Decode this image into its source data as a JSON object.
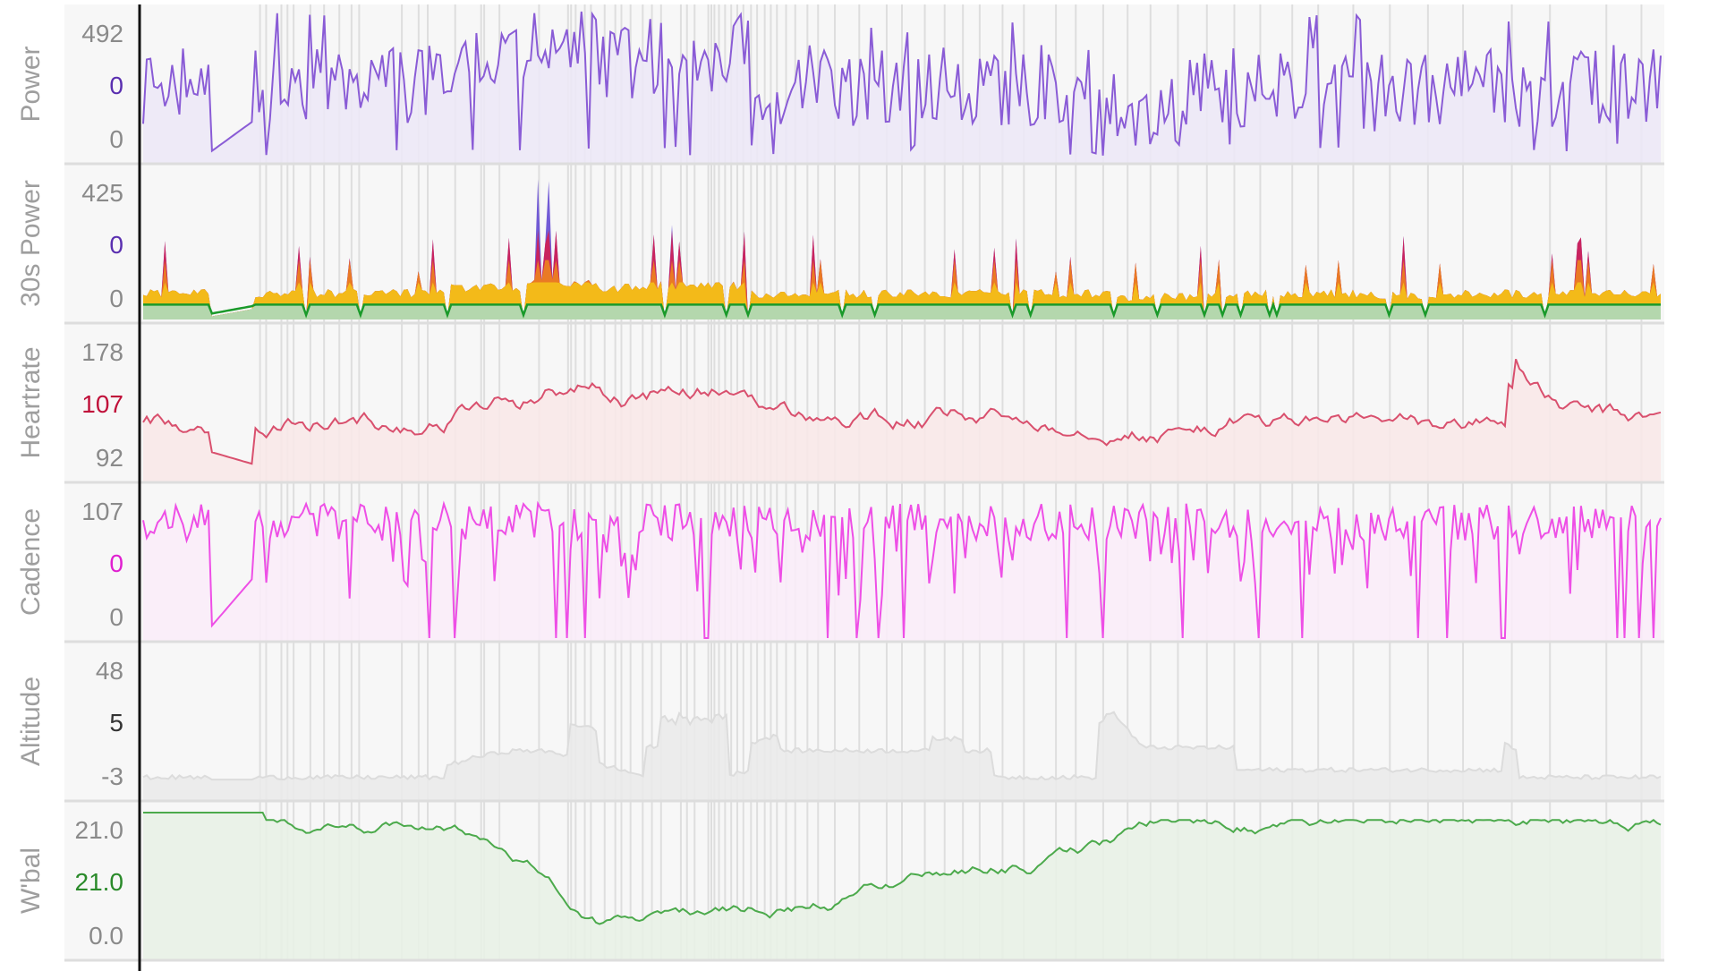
{
  "chart_data": [
    {
      "type": "line",
      "panel": "power",
      "ylabel": "Power",
      "ticks": {
        "top": "492",
        "middle": "0",
        "bottom": "0"
      },
      "colors": {
        "line": "#8a5cd6",
        "fill": "#ece8f6",
        "middle_tick": "#5a2fb0"
      },
      "ylim": [
        0,
        492
      ],
      "profile": "power",
      "points": 420
    },
    {
      "type": "area",
      "panel": "power30",
      "ylabel": "30s Power",
      "ticks": {
        "top": "425",
        "middle": "0",
        "bottom": "0"
      },
      "colors": {
        "zone1": "#a8dcc8",
        "zone2": "#1a9a2a",
        "zone3": "#f5c518",
        "zone4": "#f08a1a",
        "zone5": "#d81b4a",
        "zone6": "#5a3fd0",
        "middle_tick": "#5a2fb0"
      },
      "ylim": [
        0,
        425
      ],
      "profile": "power30",
      "points": 420
    },
    {
      "type": "line",
      "panel": "heartrate",
      "ylabel": "Heartrate",
      "ticks": {
        "top": "178",
        "middle": "107",
        "bottom": "92"
      },
      "colors": {
        "line": "#d9506e",
        "fill": "#f8e8e8",
        "middle_tick": "#c0103a"
      },
      "ylim": [
        92,
        178
      ],
      "profile": "heartrate",
      "points": 420
    },
    {
      "type": "line",
      "panel": "cadence",
      "ylabel": "Cadence",
      "ticks": {
        "top": "107",
        "middle": "0",
        "bottom": "0"
      },
      "colors": {
        "line": "#ee4fe6",
        "fill": "#f9ecf8",
        "middle_tick": "#e020d0"
      },
      "ylim": [
        0,
        107
      ],
      "profile": "cadence",
      "points": 420
    },
    {
      "type": "area",
      "panel": "altitude",
      "ylabel": "Altitude",
      "ticks": {
        "top": "48",
        "middle": "5",
        "bottom": "-3"
      },
      "colors": {
        "line": "#dcdcdc",
        "fill": "#eaeaea",
        "middle_tick": "#333333"
      },
      "ylim": [
        -3,
        48
      ],
      "profile": "altitude",
      "points": 420
    },
    {
      "type": "line",
      "panel": "wbal",
      "ylabel": "W'bal",
      "ticks": {
        "top": "21.0",
        "middle": "21.0",
        "bottom": "0.0"
      },
      "colors": {
        "line": "#4caa4c",
        "fill": "#e8f1e6",
        "middle_tick": "#2a8a2a"
      },
      "ylim": [
        0,
        21
      ],
      "profile": "wbal",
      "points": 420
    }
  ],
  "colors": {
    "background": "#ffffff",
    "panel_bg": "#f7f7f7",
    "axis": "#111111",
    "marker": "#dedede",
    "separator": "#dddddd"
  },
  "x_markers": [
    0.079,
    0.083,
    0.093,
    0.097,
    0.101,
    0.112,
    0.121,
    0.131,
    0.139,
    0.144,
    0.172,
    0.183,
    0.189,
    0.207,
    0.224,
    0.226,
    0.236,
    0.262,
    0.281,
    0.283,
    0.286,
    0.292,
    0.296,
    0.305,
    0.312,
    0.316,
    0.322,
    0.33,
    0.336,
    0.342,
    0.355,
    0.359,
    0.364,
    0.373,
    0.375,
    0.377,
    0.38,
    0.384,
    0.388,
    0.392,
    0.396,
    0.401,
    0.405,
    0.41,
    0.414,
    0.418,
    0.424,
    0.43,
    0.438,
    0.445,
    0.456,
    0.472,
    0.49,
    0.5,
    0.515,
    0.528,
    0.54,
    0.551,
    0.566,
    0.58,
    0.601,
    0.614,
    0.632,
    0.648,
    0.663,
    0.681,
    0.7,
    0.718,
    0.735,
    0.756,
    0.773,
    0.796,
    0.82,
    0.845,
    0.868,
    0.9,
    0.925,
    0.962,
    0.985
  ]
}
